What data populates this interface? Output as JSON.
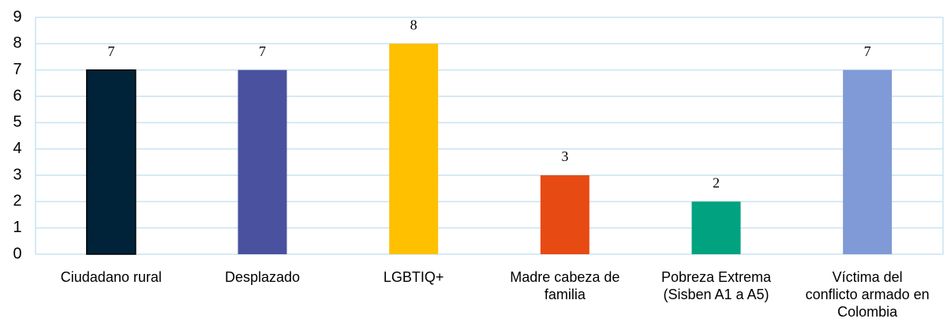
{
  "chart_data": {
    "type": "bar",
    "categories": [
      "Ciudadano rural",
      "Desplazado",
      "LGBTIQ+",
      "Madre cabeza de familia",
      "Pobreza Extrema (Sisben A1 a A5)",
      "Víctima del conflicto armado en Colombia"
    ],
    "values": [
      7,
      7,
      8,
      3,
      2,
      7
    ],
    "colors": [
      "#00233a",
      "#4a52a0",
      "#ffc000",
      "#e84a14",
      "#00a27f",
      "#7f9ad6"
    ],
    "ylim": [
      0,
      9
    ],
    "yticks": [
      0,
      1,
      2,
      3,
      4,
      5,
      6,
      7,
      8,
      9
    ],
    "grid": true
  }
}
